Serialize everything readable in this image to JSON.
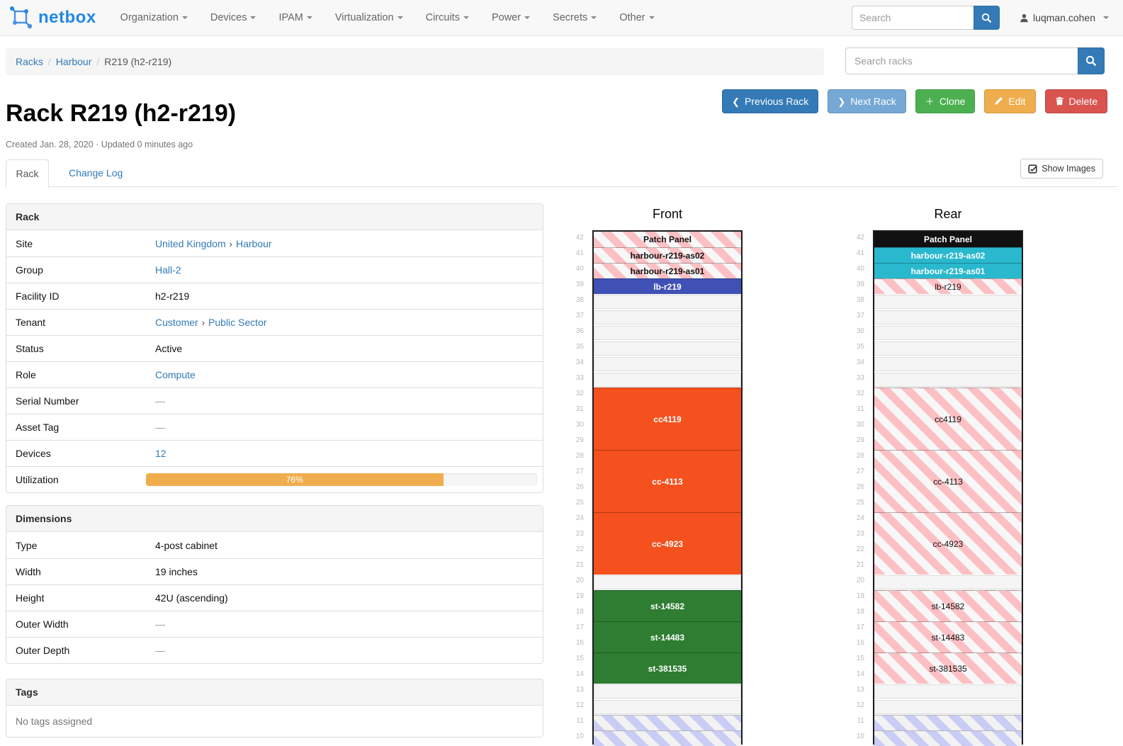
{
  "navbar": {
    "brand": "netbox",
    "items": [
      "Organization",
      "Devices",
      "IPAM",
      "Virtualization",
      "Circuits",
      "Power",
      "Secrets",
      "Other"
    ],
    "search_placeholder": "Search",
    "user": "luqman.cohen"
  },
  "breadcrumb": {
    "links": [
      "Racks",
      "Harbour"
    ],
    "current": "R219 (h2-r219)",
    "separator": "/",
    "search_placeholder": "Search racks"
  },
  "actions": [
    {
      "name": "previous-rack",
      "label": "Previous Rack",
      "icon": "chevron-left",
      "color": "#337ab7"
    },
    {
      "name": "next-rack",
      "label": "Next Rack",
      "icon": "chevron-right",
      "color": "#75a8d5"
    },
    {
      "name": "clone",
      "label": "Clone",
      "icon": "plus",
      "color": "#4cb050"
    },
    {
      "name": "edit",
      "label": "Edit",
      "icon": "pencil",
      "color": "#f0ad4e"
    },
    {
      "name": "delete",
      "label": "Delete",
      "icon": "trash",
      "color": "#d9534f"
    }
  ],
  "page": {
    "title": "Rack R219 (h2-r219)",
    "meta": "Created Jan. 28, 2020 · Updated 0 minutes ago"
  },
  "tabs": {
    "active": "Rack",
    "changelog": "Change Log",
    "show_images": "Show Images"
  },
  "rack_panel": {
    "title": "Rack",
    "link_separator": "›",
    "rows": [
      {
        "label": "Site",
        "segments": [
          {
            "t": "United Kingdom",
            "link": true
          },
          {
            "t": "Harbour",
            "link": true
          }
        ]
      },
      {
        "label": "Group",
        "segments": [
          {
            "t": "Hall-2",
            "link": true
          }
        ]
      },
      {
        "label": "Facility ID",
        "segments": [
          {
            "t": "h2-r219"
          }
        ]
      },
      {
        "label": "Tenant",
        "segments": [
          {
            "t": "Customer",
            "link": true
          },
          {
            "t": "Public Sector",
            "link": true
          }
        ]
      },
      {
        "label": "Status",
        "segments": [
          {
            "t": "Active"
          }
        ]
      },
      {
        "label": "Role",
        "segments": [
          {
            "t": "Compute",
            "link": true
          }
        ]
      },
      {
        "label": "Serial Number",
        "segments": [
          {
            "t": "—",
            "muted": true
          }
        ]
      },
      {
        "label": "Asset Tag",
        "segments": [
          {
            "t": "—",
            "muted": true
          }
        ]
      },
      {
        "label": "Devices",
        "segments": [
          {
            "t": "12",
            "link": true
          }
        ]
      },
      {
        "label": "Utilization",
        "progress": {
          "percent": 76,
          "label": "76%",
          "color": "#f0ad4e"
        }
      }
    ]
  },
  "dimensions_panel": {
    "title": "Dimensions",
    "rows": [
      {
        "label": "Type",
        "segments": [
          {
            "t": "4-post cabinet"
          }
        ]
      },
      {
        "label": "Width",
        "segments": [
          {
            "t": "19 inches"
          }
        ]
      },
      {
        "label": "Height",
        "segments": [
          {
            "t": "42U (ascending)"
          }
        ]
      },
      {
        "label": "Outer Width",
        "segments": [
          {
            "t": "—",
            "muted": true
          }
        ]
      },
      {
        "label": "Outer Depth",
        "segments": [
          {
            "t": "—",
            "muted": true
          }
        ]
      }
    ]
  },
  "tags_panel": {
    "title": "Tags",
    "empty": "No tags assigned"
  },
  "elevation": {
    "top_unit": 42,
    "bottom_unit": 10,
    "unit_height": 22,
    "stripe_pink": [
      "#fcc0c4",
      "#f7f7f7"
    ],
    "stripe_blue": [
      "#c9cdf5",
      "#f2f2f2"
    ],
    "front": {
      "title": "Front",
      "blocks": [
        {
          "u": 42,
          "n": 1,
          "label": "Patch Panel",
          "style": "stripe-pink",
          "text": "dark-bold"
        },
        {
          "u": 41,
          "n": 1,
          "label": "harbour-r219-as02",
          "style": "stripe-pink",
          "text": "dark-bold"
        },
        {
          "u": 40,
          "n": 1,
          "label": "harbour-r219-as01",
          "style": "stripe-pink",
          "text": "dark-bold"
        },
        {
          "u": 39,
          "n": 1,
          "label": "lb-r219",
          "style": "solid",
          "color": "#3f51b5",
          "text": "light"
        },
        {
          "u": 38,
          "n": 6,
          "style": "empty"
        },
        {
          "u": 32,
          "n": 4,
          "label": "cc4119",
          "style": "solid",
          "color": "#f4511e",
          "text": "light"
        },
        {
          "u": 28,
          "n": 4,
          "label": "cc-4113",
          "style": "solid",
          "color": "#f4511e",
          "text": "light"
        },
        {
          "u": 24,
          "n": 4,
          "label": "cc-4923",
          "style": "solid",
          "color": "#f4511e",
          "text": "light"
        },
        {
          "u": 20,
          "n": 1,
          "style": "empty"
        },
        {
          "u": 19,
          "n": 2,
          "label": "st-14582",
          "style": "solid",
          "color": "#2e7d32",
          "text": "light"
        },
        {
          "u": 17,
          "n": 2,
          "label": "st-14483",
          "style": "solid",
          "color": "#2e7d32",
          "text": "light"
        },
        {
          "u": 15,
          "n": 2,
          "label": "st-381535",
          "style": "solid",
          "color": "#2e7d32",
          "text": "light"
        },
        {
          "u": 13,
          "n": 2,
          "style": "empty"
        },
        {
          "u": 11,
          "n": 1,
          "style": "stripe-blue"
        },
        {
          "u": 10,
          "n": 1,
          "style": "stripe-blue"
        }
      ]
    },
    "rear": {
      "title": "Rear",
      "blocks": [
        {
          "u": 42,
          "n": 1,
          "label": "Patch Panel",
          "style": "solid",
          "color": "#111111",
          "text": "light"
        },
        {
          "u": 41,
          "n": 1,
          "label": "harbour-r219-as02",
          "style": "solid",
          "color": "#29b8ce",
          "text": "light"
        },
        {
          "u": 40,
          "n": 1,
          "label": "harbour-r219-as01",
          "style": "solid",
          "color": "#29b8ce",
          "text": "light"
        },
        {
          "u": 39,
          "n": 1,
          "label": "lb-r219",
          "style": "stripe-pink",
          "text": "dark"
        },
        {
          "u": 38,
          "n": 6,
          "style": "empty"
        },
        {
          "u": 32,
          "n": 4,
          "label": "cc4119",
          "style": "stripe-pink",
          "text": "dark"
        },
        {
          "u": 28,
          "n": 4,
          "label": "cc-4113",
          "style": "stripe-pink",
          "text": "dark"
        },
        {
          "u": 24,
          "n": 4,
          "label": "cc-4923",
          "style": "stripe-pink",
          "text": "dark"
        },
        {
          "u": 20,
          "n": 1,
          "style": "empty"
        },
        {
          "u": 19,
          "n": 2,
          "label": "st-14582",
          "style": "stripe-pink",
          "text": "dark"
        },
        {
          "u": 17,
          "n": 2,
          "label": "st-14483",
          "style": "stripe-pink",
          "text": "dark"
        },
        {
          "u": 15,
          "n": 2,
          "label": "st-381535",
          "style": "stripe-pink",
          "text": "dark"
        },
        {
          "u": 13,
          "n": 2,
          "style": "empty"
        },
        {
          "u": 11,
          "n": 1,
          "style": "stripe-blue"
        },
        {
          "u": 10,
          "n": 1,
          "style": "stripe-blue"
        }
      ]
    }
  }
}
